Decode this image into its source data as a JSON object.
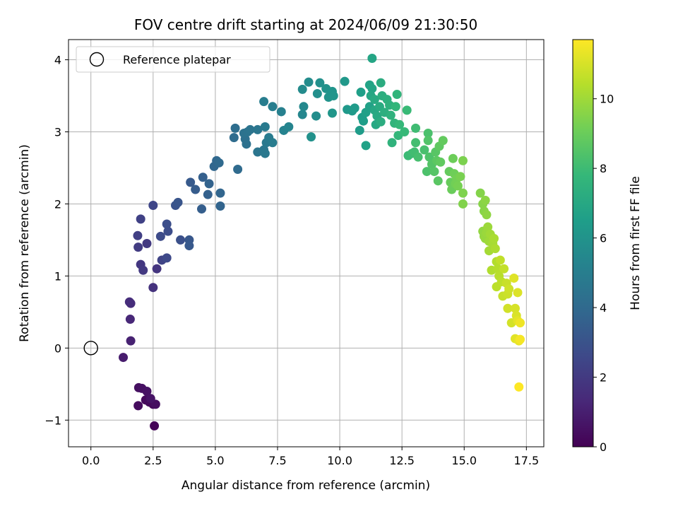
{
  "chart_data": {
    "type": "scatter",
    "title": "FOV centre drift starting at 2024/06/09 21:30:50",
    "xlabel": "Angular distance from reference (arcmin)",
    "ylabel": "Rotation from reference (arcmin)",
    "xlim": [
      -0.9,
      18.2
    ],
    "ylim": [
      -1.37,
      4.28
    ],
    "xticks": [
      0.0,
      2.5,
      5.0,
      7.5,
      10.0,
      12.5,
      15.0,
      17.5
    ],
    "xtick_labels": [
      "0.0",
      "2.5",
      "5.0",
      "7.5",
      "10.0",
      "12.5",
      "15.0",
      "17.5"
    ],
    "yticks": [
      -1,
      0,
      1,
      2,
      3,
      4
    ],
    "ytick_labels": [
      "−1",
      "0",
      "1",
      "2",
      "3",
      "4"
    ],
    "grid": true,
    "legend": {
      "placement": "top-left",
      "entries": [
        "Reference platepar"
      ]
    },
    "reference": {
      "name": "Reference platepar",
      "x": 0.0,
      "y": 0.0
    },
    "colorbar": {
      "label": "Hours from first FF file",
      "colormap": "viridis",
      "range": [
        0,
        11.7
      ],
      "ticks": [
        0,
        2,
        4,
        6,
        8,
        10
      ],
      "tick_labels": [
        "0",
        "2",
        "4",
        "6",
        "8",
        "10"
      ],
      "colormap_stops": [
        "#440154",
        "#482878",
        "#3e4989",
        "#31688e",
        "#26828e",
        "#1f9e89",
        "#35b779",
        "#6ece58",
        "#b5de2b",
        "#fde725"
      ]
    },
    "series": [
      {
        "points": [
          [
            2.55,
            -1.08,
            0.1
          ],
          [
            2.5,
            -0.78,
            0.2
          ],
          [
            2.35,
            -0.75,
            0.25
          ],
          [
            2.2,
            -0.72,
            0.3
          ],
          [
            1.9,
            -0.8,
            0.35
          ],
          [
            1.92,
            -0.55,
            0.45
          ],
          [
            2.05,
            -0.56,
            0.5
          ],
          [
            2.25,
            -0.6,
            0.55
          ],
          [
            2.6,
            -0.78,
            0.4
          ],
          [
            2.4,
            -0.7,
            0.6
          ],
          [
            1.3,
            -0.13,
            0.9
          ],
          [
            1.6,
            0.1,
            1.1
          ],
          [
            1.58,
            0.4,
            1.3
          ],
          [
            1.6,
            0.62,
            1.45
          ],
          [
            1.55,
            0.64,
            1.5
          ],
          [
            2.5,
            0.84,
            1.7
          ],
          [
            2.65,
            1.1,
            1.8
          ],
          [
            2.0,
            1.16,
            1.9
          ],
          [
            2.1,
            1.08,
            1.95
          ],
          [
            2.25,
            1.45,
            2.0
          ],
          [
            1.9,
            1.4,
            2.1
          ],
          [
            1.88,
            1.56,
            2.2
          ],
          [
            2.0,
            1.79,
            2.3
          ],
          [
            2.5,
            1.98,
            2.5
          ],
          [
            2.85,
            1.22,
            2.4
          ],
          [
            3.05,
            1.25,
            2.6
          ],
          [
            2.8,
            1.55,
            2.7
          ],
          [
            3.1,
            1.62,
            2.75
          ],
          [
            3.05,
            1.72,
            2.8
          ],
          [
            3.6,
            1.5,
            2.9
          ],
          [
            3.4,
            1.98,
            3.0
          ],
          [
            3.5,
            2.02,
            3.1
          ],
          [
            3.95,
            1.5,
            3.2
          ],
          [
            3.95,
            1.42,
            3.25
          ],
          [
            4.0,
            2.3,
            3.3
          ],
          [
            4.2,
            2.2,
            3.4
          ],
          [
            4.45,
            1.93,
            3.5
          ],
          [
            4.5,
            2.37,
            3.55
          ],
          [
            4.7,
            2.13,
            3.6
          ],
          [
            4.75,
            2.28,
            3.7
          ],
          [
            5.2,
            1.97,
            3.75
          ],
          [
            5.2,
            2.15,
            3.8
          ],
          [
            4.95,
            2.52,
            3.85
          ],
          [
            5.05,
            2.6,
            3.9
          ],
          [
            5.15,
            2.57,
            4.0
          ],
          [
            5.9,
            2.48,
            4.05
          ],
          [
            5.75,
            2.92,
            4.1
          ],
          [
            5.8,
            3.05,
            4.2
          ],
          [
            6.2,
            2.9,
            4.3
          ],
          [
            6.25,
            2.83,
            4.35
          ],
          [
            6.15,
            2.98,
            4.4
          ],
          [
            6.3,
            3.0,
            4.45
          ],
          [
            6.4,
            3.03,
            4.5
          ],
          [
            6.7,
            2.72,
            4.55
          ],
          [
            6.7,
            3.03,
            4.6
          ],
          [
            6.95,
            2.75,
            4.65
          ],
          [
            7.0,
            2.7,
            4.7
          ],
          [
            7.05,
            2.85,
            4.75
          ],
          [
            7.0,
            3.07,
            4.8
          ],
          [
            7.15,
            2.92,
            4.85
          ],
          [
            7.3,
            2.85,
            4.9
          ],
          [
            6.95,
            3.42,
            4.95
          ],
          [
            7.3,
            3.35,
            5.0
          ],
          [
            7.65,
            3.28,
            5.1
          ],
          [
            7.75,
            3.02,
            5.2
          ],
          [
            7.95,
            3.07,
            5.3
          ],
          [
            8.5,
            3.24,
            5.4
          ],
          [
            8.55,
            3.35,
            5.5
          ],
          [
            8.5,
            3.59,
            5.6
          ],
          [
            8.75,
            3.69,
            5.65
          ],
          [
            9.05,
            3.22,
            5.7
          ],
          [
            9.1,
            3.53,
            5.8
          ],
          [
            9.2,
            3.68,
            5.85
          ],
          [
            8.85,
            2.93,
            5.9
          ],
          [
            9.45,
            3.6,
            5.95
          ],
          [
            9.55,
            3.48,
            6.0
          ],
          [
            9.7,
            3.56,
            6.05
          ],
          [
            9.75,
            3.5,
            6.1
          ],
          [
            9.7,
            3.26,
            6.15
          ],
          [
            10.2,
            3.7,
            6.2
          ],
          [
            10.3,
            3.31,
            6.25
          ],
          [
            10.5,
            3.29,
            6.3
          ],
          [
            10.6,
            3.33,
            6.35
          ],
          [
            10.8,
            3.02,
            6.4
          ],
          [
            10.9,
            3.2,
            6.45
          ],
          [
            10.95,
            3.15,
            6.5
          ],
          [
            10.85,
            3.55,
            6.55
          ],
          [
            11.05,
            3.27,
            6.6
          ],
          [
            11.2,
            3.35,
            6.65
          ],
          [
            11.05,
            2.81,
            6.7
          ],
          [
            11.2,
            3.65,
            6.75
          ],
          [
            11.3,
            3.6,
            6.8
          ],
          [
            11.3,
            4.02,
            6.85
          ],
          [
            11.25,
            3.5,
            6.9
          ],
          [
            11.4,
            3.3,
            6.95
          ],
          [
            11.45,
            3.1,
            7.0
          ],
          [
            11.5,
            3.22,
            7.05
          ],
          [
            11.4,
            3.45,
            7.1
          ],
          [
            11.6,
            3.35,
            7.15
          ],
          [
            11.65,
            3.68,
            7.2
          ],
          [
            11.65,
            3.14,
            7.25
          ],
          [
            11.7,
            3.5,
            7.3
          ],
          [
            11.8,
            3.27,
            7.35
          ],
          [
            11.9,
            3.45,
            7.4
          ],
          [
            12.0,
            3.37,
            7.45
          ],
          [
            12.05,
            3.23,
            7.5
          ],
          [
            12.1,
            2.85,
            7.55
          ],
          [
            12.2,
            3.12,
            7.6
          ],
          [
            12.3,
            3.52,
            7.65
          ],
          [
            12.25,
            3.35,
            7.7
          ],
          [
            12.35,
            2.95,
            7.75
          ],
          [
            12.4,
            3.1,
            7.8
          ],
          [
            12.6,
            3.0,
            7.85
          ],
          [
            12.7,
            3.3,
            7.9
          ],
          [
            12.75,
            2.67,
            7.95
          ],
          [
            12.9,
            2.7,
            8.0
          ],
          [
            13.05,
            3.05,
            8.05
          ],
          [
            13.0,
            2.72,
            8.1
          ],
          [
            13.05,
            2.85,
            8.15
          ],
          [
            13.15,
            2.65,
            8.2
          ],
          [
            13.4,
            2.75,
            8.25
          ],
          [
            13.55,
            2.98,
            8.3
          ],
          [
            13.5,
            2.45,
            8.35
          ],
          [
            13.6,
            2.65,
            8.4
          ],
          [
            13.55,
            2.88,
            8.45
          ],
          [
            13.7,
            2.55,
            8.5
          ],
          [
            13.8,
            2.45,
            8.55
          ],
          [
            13.85,
            2.72,
            8.6
          ],
          [
            13.95,
            2.32,
            8.65
          ],
          [
            13.9,
            2.6,
            8.7
          ],
          [
            14.0,
            2.8,
            8.75
          ],
          [
            14.05,
            2.58,
            8.8
          ],
          [
            14.15,
            2.88,
            8.85
          ],
          [
            14.4,
            2.45,
            8.9
          ],
          [
            14.45,
            2.3,
            8.95
          ],
          [
            14.5,
            2.2,
            9.0
          ],
          [
            14.55,
            2.63,
            9.05
          ],
          [
            14.6,
            2.42,
            9.1
          ],
          [
            14.65,
            2.28,
            9.15
          ],
          [
            14.7,
            2.35,
            9.2
          ],
          [
            14.75,
            2.25,
            9.25
          ],
          [
            14.85,
            2.38,
            9.3
          ],
          [
            14.95,
            2.6,
            9.35
          ],
          [
            14.95,
            2.15,
            9.4
          ],
          [
            14.95,
            2.0,
            9.45
          ],
          [
            15.65,
            2.15,
            9.5
          ],
          [
            15.75,
            2.0,
            9.55
          ],
          [
            15.8,
            1.9,
            9.6
          ],
          [
            15.85,
            2.05,
            9.65
          ],
          [
            15.9,
            1.85,
            9.7
          ],
          [
            15.75,
            1.62,
            9.75
          ],
          [
            15.8,
            1.55,
            9.8
          ],
          [
            15.85,
            1.52,
            9.85
          ],
          [
            15.9,
            1.6,
            9.9
          ],
          [
            15.95,
            1.68,
            9.95
          ],
          [
            16.0,
            1.48,
            10.0
          ],
          [
            16.05,
            1.58,
            10.05
          ],
          [
            16.0,
            1.35,
            10.1
          ],
          [
            16.15,
            1.45,
            10.15
          ],
          [
            16.2,
            1.52,
            10.2
          ],
          [
            16.25,
            1.38,
            10.25
          ],
          [
            16.1,
            1.08,
            10.3
          ],
          [
            16.3,
            1.2,
            10.35
          ],
          [
            16.35,
            1.1,
            10.4
          ],
          [
            16.4,
            1.0,
            10.45
          ],
          [
            16.3,
            0.85,
            10.5
          ],
          [
            16.5,
            0.92,
            10.55
          ],
          [
            16.45,
            1.22,
            10.6
          ],
          [
            16.6,
            1.1,
            10.65
          ],
          [
            16.55,
            0.72,
            10.7
          ],
          [
            16.7,
            0.9,
            10.75
          ],
          [
            16.75,
            0.75,
            10.8
          ],
          [
            16.8,
            0.82,
            10.85
          ],
          [
            16.75,
            0.55,
            10.9
          ],
          [
            16.9,
            0.35,
            10.95
          ],
          [
            17.05,
            0.55,
            11.0
          ],
          [
            17.1,
            0.45,
            11.05
          ],
          [
            17.15,
            0.77,
            11.1
          ],
          [
            17.0,
            0.97,
            11.15
          ],
          [
            17.05,
            0.13,
            11.2
          ],
          [
            17.15,
            0.38,
            11.25
          ],
          [
            17.2,
            0.1,
            11.35
          ],
          [
            17.25,
            0.35,
            11.45
          ],
          [
            17.25,
            0.12,
            11.55
          ],
          [
            17.2,
            -0.54,
            11.7
          ]
        ]
      }
    ]
  }
}
